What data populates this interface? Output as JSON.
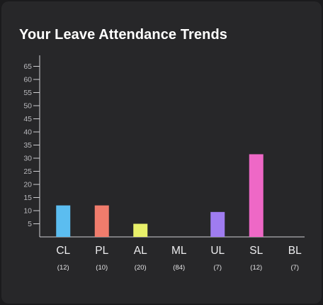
{
  "title": "Your Leave Attendance Trends",
  "chart_data": {
    "type": "bar",
    "title": "Your Leave Attendance Trends",
    "categories": [
      "CL",
      "PL",
      "AL",
      "ML",
      "UL",
      "SL",
      "BL"
    ],
    "category_counts": [
      "(12)",
      "(10)",
      "(20)",
      "(84)",
      "(7)",
      "(12)",
      "(7)"
    ],
    "values": [
      12,
      12,
      5,
      0,
      9.5,
      31.5,
      0
    ],
    "colors": [
      "#5bbdf0",
      "#f07c6c",
      "#e8f06a",
      "#9f7cf0",
      "#9f7cf0",
      "#ee68c6",
      "#ee68c6"
    ],
    "yticks": [
      5,
      10,
      15,
      20,
      25,
      30,
      35,
      40,
      45,
      50,
      55,
      60,
      65
    ],
    "ylim": [
      0,
      65
    ],
    "xlabel": "",
    "ylabel": "",
    "grid": false
  }
}
